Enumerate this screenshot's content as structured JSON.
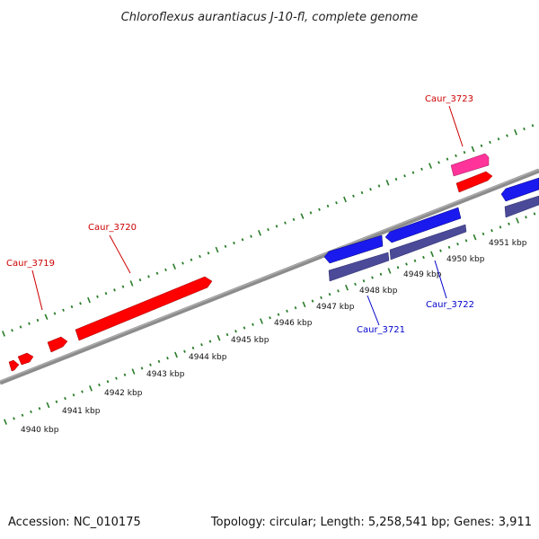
{
  "title": "Chloroflexus aurantiacus J-10-fl, complete genome",
  "accession": "Accession: NC_010175",
  "summary": "Topology: circular; Length: 5,258,541 bp; Genes: 3,911",
  "colors": {
    "backbone": "#8c8c8c",
    "tick": "#2a7d2a",
    "forward_gene": "#ff0000",
    "forward_label": "#cc0000",
    "reverse_gene": "#1a1aee",
    "reverse_cds": "#4a4a99",
    "reverse_label": "#0000cc",
    "rna_gene": "#ff3399"
  },
  "scale": {
    "unit": "kbp",
    "labels": [
      "4940 kbp",
      "4941 kbp",
      "4942 kbp",
      "4943 kbp",
      "4944 kbp",
      "4945 kbp",
      "4946 kbp",
      "4947 kbp",
      "4948 kbp",
      "4949 kbp",
      "4950 kbp",
      "4951 kbp"
    ]
  },
  "gene_labels": [
    {
      "text": "Caur_3719",
      "strand": "forward"
    },
    {
      "text": "Caur_3720",
      "strand": "forward"
    },
    {
      "text": "Caur_3723",
      "strand": "forward"
    },
    {
      "text": "Caur_3721",
      "strand": "reverse"
    },
    {
      "text": "Caur_3722",
      "strand": "reverse"
    }
  ]
}
